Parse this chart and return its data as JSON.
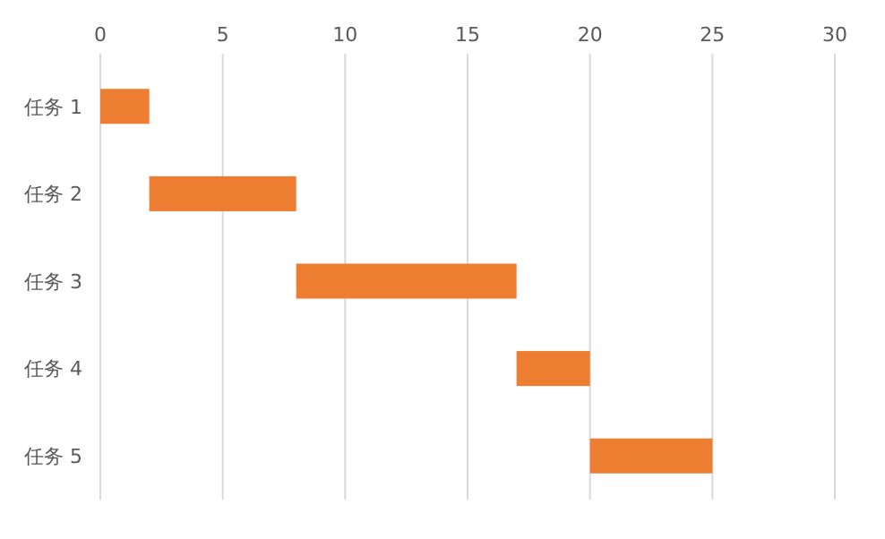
{
  "chart_data": {
    "type": "bar",
    "orientation": "horizontal",
    "categories": [
      "任务 1",
      "任务 2",
      "任务 3",
      "任务 4",
      "任务 5"
    ],
    "base": [
      0,
      2,
      8,
      17,
      20
    ],
    "values": [
      2,
      6,
      9,
      3,
      5
    ],
    "color": "#ed7d31",
    "xlim": [
      0,
      30
    ],
    "xticks": [
      0,
      5,
      10,
      15,
      20,
      25,
      30
    ],
    "grid": "x"
  }
}
